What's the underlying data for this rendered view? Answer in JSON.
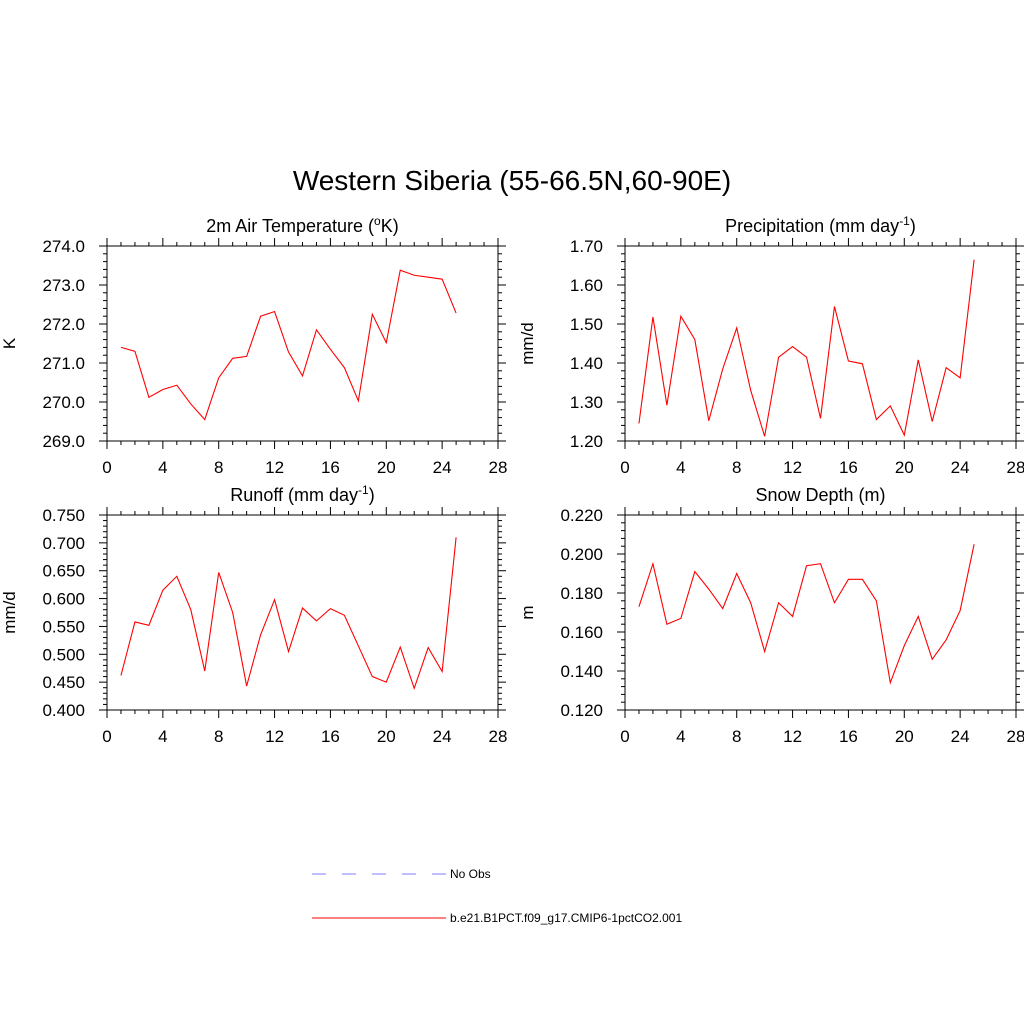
{
  "figure": {
    "title": "Western Siberia (55-66.5N,60-90E)"
  },
  "legend": {
    "items": [
      {
        "label": "No Obs",
        "color": "#9999ff",
        "dash": true
      },
      {
        "label": "b.e21.B1PCT.f09_g17.CMIP6-1pctCO2.001",
        "color": "#ff0000",
        "dash": false
      }
    ]
  },
  "chart_data": [
    {
      "type": "line",
      "title": "2m Air Temperature (",
      "title_sup": "o",
      "title_after": "K)",
      "ylabel": "K",
      "xlim": [
        0,
        28
      ],
      "ylim": [
        269.0,
        274.0
      ],
      "xticks": [
        0,
        4,
        8,
        12,
        16,
        20,
        24,
        28
      ],
      "yticks": [
        269.0,
        270.0,
        271.0,
        272.0,
        273.0,
        274.0
      ],
      "ytick_labels": [
        "269.0",
        "270.0",
        "271.0",
        "272.0",
        "273.0",
        "274.0"
      ],
      "yminor": 0.2,
      "series": [
        {
          "color": "#ff0000",
          "x": [
            1,
            2,
            3,
            4,
            5,
            6,
            7,
            8,
            9,
            10,
            11,
            12,
            13,
            14,
            15,
            16,
            17,
            18,
            19,
            20,
            21,
            22,
            23,
            24,
            25
          ],
          "y": [
            271.4,
            271.3,
            270.12,
            270.32,
            270.43,
            269.95,
            269.55,
            270.62,
            271.12,
            271.17,
            272.2,
            272.32,
            271.28,
            270.67,
            271.85,
            271.35,
            270.88,
            270.03,
            272.25,
            271.52,
            273.38,
            273.25,
            273.2,
            273.15,
            272.28
          ]
        }
      ]
    },
    {
      "type": "line",
      "title": "Precipitation (mm day",
      "title_sup": "-1",
      "title_after": ")",
      "ylabel": "mm/d",
      "xlim": [
        0,
        28
      ],
      "ylim": [
        1.2,
        1.7
      ],
      "xticks": [
        0,
        4,
        8,
        12,
        16,
        20,
        24,
        28
      ],
      "yticks": [
        1.2,
        1.3,
        1.4,
        1.5,
        1.6,
        1.7
      ],
      "ytick_labels": [
        "1.20",
        "1.30",
        "1.40",
        "1.50",
        "1.60",
        "1.70"
      ],
      "yminor": 0.02,
      "series": [
        {
          "color": "#ff0000",
          "x": [
            1,
            2,
            3,
            4,
            5,
            6,
            7,
            8,
            9,
            10,
            11,
            12,
            13,
            14,
            15,
            16,
            17,
            18,
            19,
            20,
            21,
            22,
            23,
            24,
            25
          ],
          "y": [
            1.245,
            1.518,
            1.292,
            1.52,
            1.46,
            1.252,
            1.385,
            1.49,
            1.33,
            1.212,
            1.415,
            1.442,
            1.415,
            1.258,
            1.545,
            1.405,
            1.398,
            1.255,
            1.29,
            1.215,
            1.408,
            1.25,
            1.388,
            1.362,
            1.665
          ]
        }
      ]
    },
    {
      "type": "line",
      "title": "Runoff (mm day",
      "title_sup": "-1",
      "title_after": ")",
      "ylabel": "mm/d",
      "xlim": [
        0,
        28
      ],
      "ylim": [
        0.4,
        0.75
      ],
      "xticks": [
        0,
        4,
        8,
        12,
        16,
        20,
        24,
        28
      ],
      "yticks": [
        0.4,
        0.45,
        0.5,
        0.55,
        0.6,
        0.65,
        0.7,
        0.75
      ],
      "ytick_labels": [
        "0.400",
        "0.450",
        "0.500",
        "0.550",
        "0.600",
        "0.650",
        "0.700",
        "0.750"
      ],
      "yminor": 0.01,
      "series": [
        {
          "color": "#ff0000",
          "x": [
            1,
            2,
            3,
            4,
            5,
            6,
            7,
            8,
            9,
            10,
            11,
            12,
            13,
            14,
            15,
            16,
            17,
            18,
            19,
            20,
            21,
            22,
            23,
            24,
            25
          ],
          "y": [
            0.462,
            0.558,
            0.552,
            0.615,
            0.64,
            0.58,
            0.47,
            0.647,
            0.575,
            0.443,
            0.535,
            0.598,
            0.505,
            0.583,
            0.56,
            0.582,
            0.57,
            0.515,
            0.46,
            0.45,
            0.513,
            0.439,
            0.512,
            0.469,
            0.71
          ]
        }
      ]
    },
    {
      "type": "line",
      "title": "Snow Depth (m)",
      "title_sup": "",
      "title_after": "",
      "ylabel": "m",
      "xlim": [
        0,
        28
      ],
      "ylim": [
        0.12,
        0.22
      ],
      "xticks": [
        0,
        4,
        8,
        12,
        16,
        20,
        24,
        28
      ],
      "yticks": [
        0.12,
        0.14,
        0.16,
        0.18,
        0.2,
        0.22
      ],
      "ytick_labels": [
        "0.120",
        "0.140",
        "0.160",
        "0.180",
        "0.200",
        "0.220"
      ],
      "yminor": 0.004,
      "series": [
        {
          "color": "#ff0000",
          "x": [
            1,
            2,
            3,
            4,
            5,
            6,
            7,
            8,
            9,
            10,
            11,
            12,
            13,
            14,
            15,
            16,
            17,
            18,
            19,
            20,
            21,
            22,
            23,
            24,
            25
          ],
          "y": [
            0.173,
            0.195,
            0.164,
            0.167,
            0.191,
            0.182,
            0.172,
            0.19,
            0.175,
            0.15,
            0.175,
            0.168,
            0.194,
            0.195,
            0.175,
            0.187,
            0.187,
            0.176,
            0.134,
            0.153,
            0.168,
            0.146,
            0.156,
            0.171,
            0.205
          ]
        }
      ]
    }
  ]
}
